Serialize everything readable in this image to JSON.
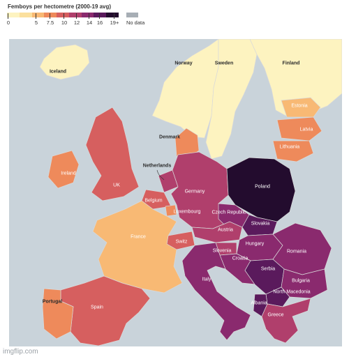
{
  "legend": {
    "title": "Femboys per hectometre (2000-19 avg)",
    "scale": [
      "#fdf3c0",
      "#fbe09e",
      "#f8b974",
      "#ee8a5b",
      "#d65f5f",
      "#b03f6c",
      "#8a2a6e",
      "#5a1a5c",
      "#230c2e"
    ],
    "tick_labels": [
      "0",
      "5",
      "7.5",
      "10",
      "12",
      "14",
      "16",
      "19+"
    ],
    "no_data_label": "No data",
    "no_data_color": "#a7aeb5"
  },
  "map": {
    "sea_color": "#c9d3da",
    "border_color": "#d9d9d9",
    "countries": [
      {
        "name": "Iceland",
        "level": 0
      },
      {
        "name": "Norway",
        "level": 0
      },
      {
        "name": "Sweden",
        "level": 0
      },
      {
        "name": "Finland",
        "level": 0
      },
      {
        "name": "Estonia",
        "level": 2
      },
      {
        "name": "Latvia",
        "level": 3
      },
      {
        "name": "Lithuania",
        "level": 3
      },
      {
        "name": "Denmark",
        "level": 3
      },
      {
        "name": "Ireland",
        "level": 3
      },
      {
        "name": "UK",
        "level": 4
      },
      {
        "name": "Netherlands",
        "level": 5
      },
      {
        "name": "Belgium",
        "level": 4
      },
      {
        "name": "Luxembourg",
        "level": 3
      },
      {
        "name": "Germany",
        "level": 5
      },
      {
        "name": "Poland",
        "level": 8
      },
      {
        "name": "Czech Republic",
        "level": 6
      },
      {
        "name": "Slovakia",
        "level": 7
      },
      {
        "name": "Austria",
        "level": 5
      },
      {
        "name": "Switz",
        "level": 4
      },
      {
        "name": "France",
        "level": 2
      },
      {
        "name": "Hungary",
        "level": 6
      },
      {
        "name": "Slovenia",
        "level": 5
      },
      {
        "name": "Croatia",
        "level": 6
      },
      {
        "name": "Romania",
        "level": 6
      },
      {
        "name": "Serbia",
        "level": 7
      },
      {
        "name": "Bulgaria",
        "level": 6
      },
      {
        "name": "North Macedonia",
        "level": 7
      },
      {
        "name": "Albania",
        "level": 7
      },
      {
        "name": "Greece",
        "level": 5
      },
      {
        "name": "Italy",
        "level": 6
      },
      {
        "name": "Spain",
        "level": 4
      },
      {
        "name": "Portugal",
        "level": 3
      }
    ]
  },
  "watermark": "imgflip.com"
}
